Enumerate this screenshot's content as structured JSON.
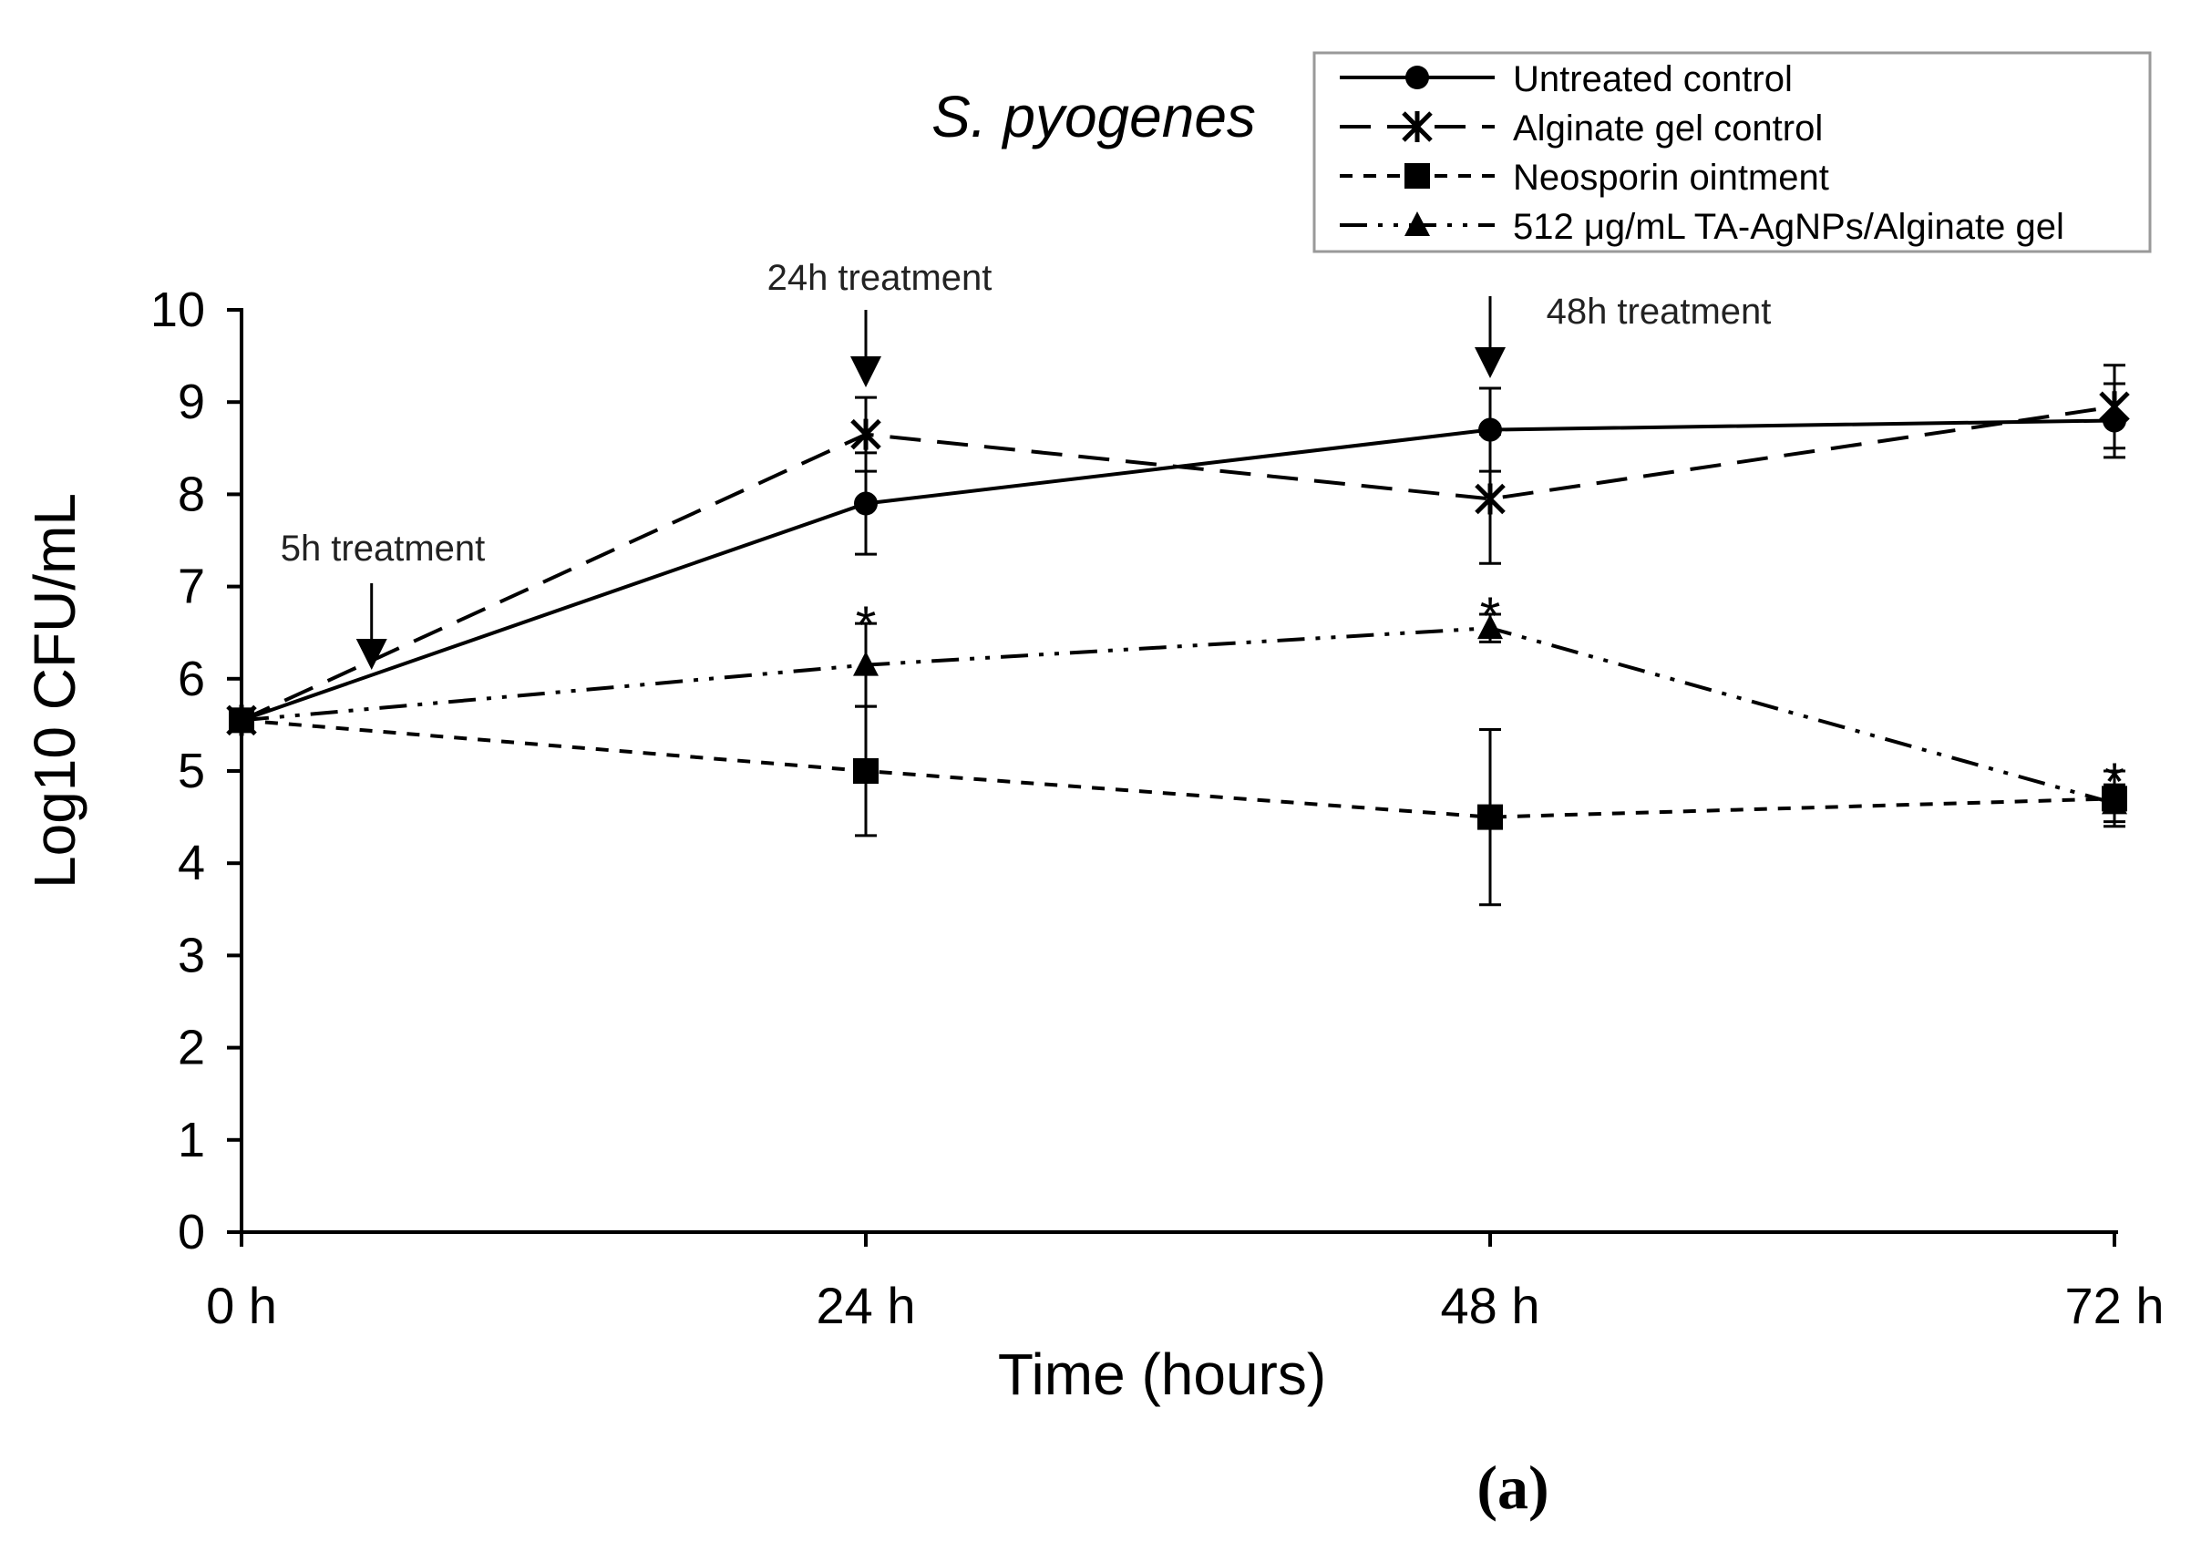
{
  "chart_data": {
    "type": "line",
    "title": "S. pyogenes",
    "xlabel": "Time (hours)",
    "ylabel": "Log10 CFU/mL",
    "x": [
      0,
      24,
      48,
      72
    ],
    "x_tick_labels": [
      "0 h",
      "24 h",
      "48 h",
      "72 h"
    ],
    "ylim": [
      0,
      10
    ],
    "y_ticks": [
      0,
      1,
      2,
      3,
      4,
      5,
      6,
      7,
      8,
      9,
      10
    ],
    "legend_position": "top-right",
    "series": [
      {
        "name": "Untreated control",
        "marker": "circle",
        "dash": "solid",
        "values": [
          5.55,
          7.9,
          8.7,
          8.8
        ],
        "errors": [
          0,
          0.55,
          0.45,
          0.4
        ]
      },
      {
        "name": "Alginate gel control",
        "marker": "asterisk",
        "dash": "long-dash",
        "values": [
          5.55,
          8.65,
          7.95,
          8.95
        ],
        "errors": [
          0,
          0.4,
          0.7,
          0.45
        ]
      },
      {
        "name": "Neosporin ointment",
        "marker": "square",
        "dash": "short-dash",
        "values": [
          5.55,
          5.0,
          4.5,
          4.7
        ],
        "errors": [
          0,
          0.7,
          0.95,
          0.3
        ]
      },
      {
        "name": "512 μg/mL TA-AgNPs/Alginate gel",
        "marker": "triangle",
        "dash": "dash-dot-dot",
        "values": [
          5.55,
          6.15,
          6.55,
          4.65
        ],
        "errors": [
          0,
          0.45,
          0.15,
          0.2
        ]
      }
    ],
    "annotations": [
      {
        "text": "5h treatment",
        "x": 5
      },
      {
        "text": "24h treatment",
        "x": 24
      },
      {
        "text": "48h treatment",
        "x": 48
      }
    ],
    "significance": [
      {
        "text": "*",
        "x": 24,
        "y": 6.6
      },
      {
        "text": "*",
        "x": 48,
        "y": 6.7
      },
      {
        "text": "*",
        "x": 72,
        "y": 4.9
      }
    ],
    "panel_label": "(a)"
  }
}
